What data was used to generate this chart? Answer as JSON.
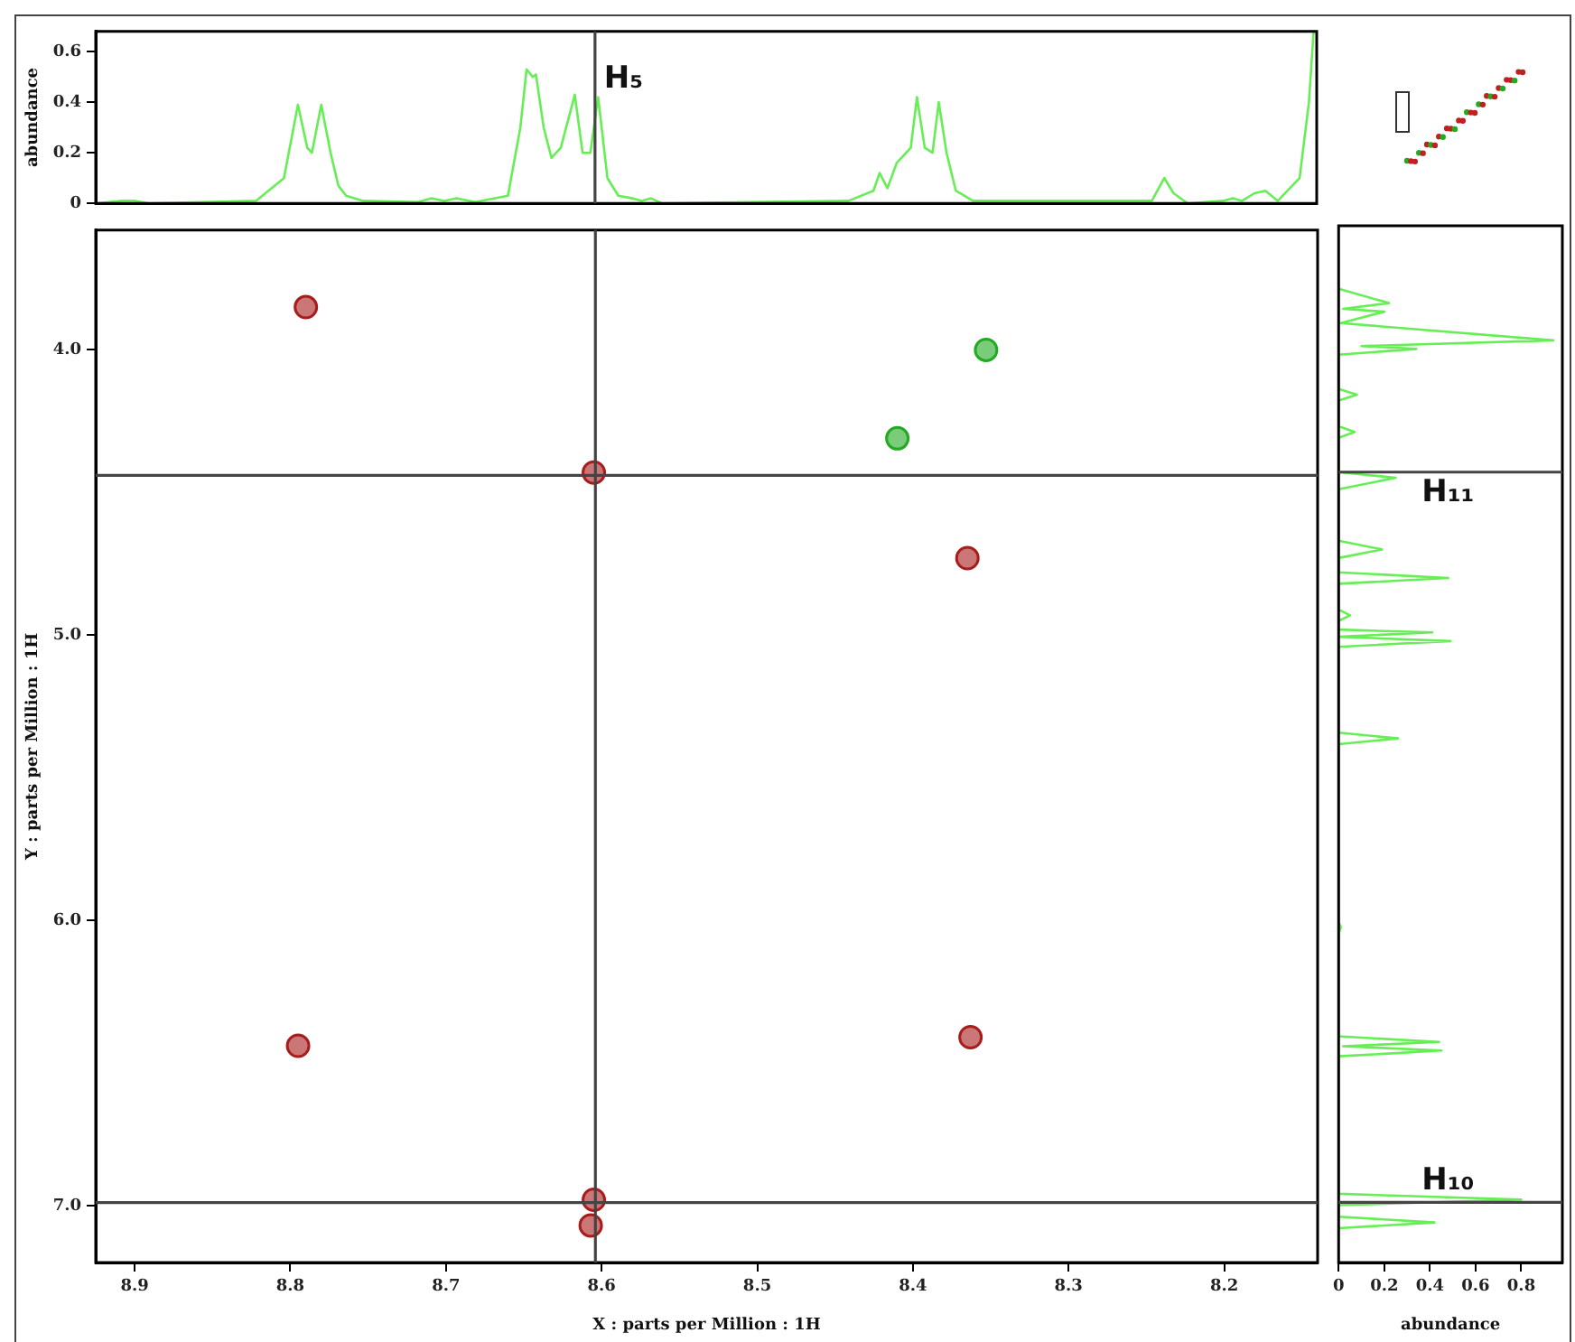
{
  "chart_data": [
    {
      "type": "line",
      "ylabel": "abundance",
      "tick_labels": "y",
      "xlim": [
        8.925,
        8.14
      ],
      "ylim": [
        0,
        0.68
      ],
      "yticks": [
        0,
        0.2,
        0.4,
        0.6
      ],
      "series": [
        {
          "color": "#66ee55",
          "x": [
            8.925,
            8.908,
            8.9,
            8.891,
            8.822,
            8.804,
            8.795,
            8.789,
            8.786,
            8.78,
            8.774,
            8.769,
            8.764,
            8.753,
            8.718,
            8.709,
            8.701,
            8.693,
            8.681,
            8.66,
            8.652,
            8.648,
            8.644,
            8.642,
            8.637,
            8.632,
            8.626,
            8.617,
            8.612,
            8.607,
            8.602,
            8.596,
            8.589,
            8.58,
            8.574,
            8.568,
            8.561,
            8.441,
            8.425,
            8.421,
            8.416,
            8.41,
            8.401,
            8.397,
            8.392,
            8.387,
            8.383,
            8.378,
            8.372,
            8.361,
            8.246,
            8.238,
            8.232,
            8.223,
            8.2,
            8.194,
            8.188,
            8.18,
            8.173,
            8.165,
            8.151,
            8.145,
            8.142
          ],
          "values": [
            0,
            0.01,
            0.01,
            0,
            0.01,
            0.1,
            0.39,
            0.22,
            0.2,
            0.39,
            0.2,
            0.07,
            0.03,
            0.01,
            0.005,
            0.02,
            0.01,
            0.02,
            0.005,
            0.03,
            0.3,
            0.53,
            0.5,
            0.51,
            0.3,
            0.18,
            0.22,
            0.43,
            0.2,
            0.2,
            0.42,
            0.1,
            0.03,
            0.02,
            0.01,
            0.02,
            0,
            0.01,
            0.05,
            0.12,
            0.06,
            0.16,
            0.22,
            0.42,
            0.22,
            0.2,
            0.4,
            0.2,
            0.05,
            0.01,
            0.01,
            0.1,
            0.04,
            0,
            0.01,
            0.02,
            0.01,
            0.04,
            0.05,
            0.01,
            0.1,
            0.4,
            0.68
          ]
        }
      ],
      "ref_lines": [
        {
          "axis": "x",
          "value": 8.604,
          "label": "H₅"
        }
      ]
    },
    {
      "type": "scatter",
      "xlabel": "X : parts per Million : 1H",
      "ylabel": "Y : parts per Million : 1H",
      "xlim": [
        8.925,
        8.14
      ],
      "xticks": [
        8.9,
        8.8,
        8.7,
        8.6,
        8.5,
        8.4,
        8.3,
        8.2
      ],
      "ylim": [
        7.2,
        3.58
      ],
      "yticks": [
        {
          "value": 4,
          "label": "4.0"
        },
        {
          "value": 5,
          "label": "5.0"
        },
        {
          "value": 6,
          "label": "6.0"
        },
        {
          "value": 7,
          "label": "7.0"
        }
      ],
      "marker": "circle",
      "series": [
        {
          "color": "#a81c1c",
          "x": [
            8.79,
            8.605,
            8.365,
            8.795,
            8.363,
            8.605,
            8.607
          ],
          "values": [
            3.85,
            4.43,
            4.73,
            6.44,
            6.41,
            6.98,
            7.07
          ]
        },
        {
          "color": "#22aa22",
          "x": [
            8.41,
            8.353
          ],
          "values": [
            4.31,
            4.0
          ]
        }
      ],
      "ref_lines": [
        {
          "axis": "x",
          "value": 8.604
        },
        {
          "axis": "y",
          "value": 4.44
        },
        {
          "axis": "y",
          "value": 6.99
        }
      ]
    },
    {
      "type": "line",
      "orientation": "horizontal",
      "xlabel": "abundance",
      "tick_labels": "x",
      "xlim": [
        0,
        0.98
      ],
      "xticks": [
        0,
        0.2,
        0.4,
        0.6,
        0.8
      ],
      "ylim": [
        7.2,
        3.58
      ],
      "series": [
        {
          "color": "#66ee55",
          "x": [
            3.8,
            3.85,
            3.87,
            3.88,
            3.92,
            3.98,
            4.0,
            4.01,
            4.03,
            4.15,
            4.17,
            4.19,
            4.28,
            4.3,
            4.32,
            4.44,
            4.46,
            4.5,
            4.68,
            4.71,
            4.74,
            4.79,
            4.81,
            4.83,
            4.92,
            4.94,
            4.96,
            4.99,
            5.0,
            5.015,
            5.03,
            5.05,
            5.35,
            5.37,
            5.39,
            6.01,
            6.03,
            6.05,
            6.41,
            6.43,
            6.445,
            6.46,
            6.48,
            6.96,
            6.98,
            7.0,
            7.04,
            7.06,
            7.08
          ],
          "values": [
            0,
            0.22,
            0.02,
            0.2,
            0.01,
            0.94,
            0.1,
            0.34,
            0,
            0,
            0.08,
            0,
            0,
            0.07,
            0,
            0,
            0.25,
            0,
            0,
            0.19,
            0,
            0,
            0.48,
            0,
            0,
            0.05,
            0,
            0,
            0.41,
            0,
            0.49,
            0,
            0,
            0.26,
            0,
            0,
            0.01,
            0,
            0,
            0.44,
            0.02,
            0.45,
            0,
            0,
            0.8,
            0,
            0,
            0.42,
            0
          ]
        }
      ],
      "ref_lines": [
        {
          "axis": "y",
          "value": 4.44,
          "label": "H₁₁"
        },
        {
          "axis": "y",
          "value": 6.99,
          "label": "H₁₀"
        }
      ]
    }
  ]
}
